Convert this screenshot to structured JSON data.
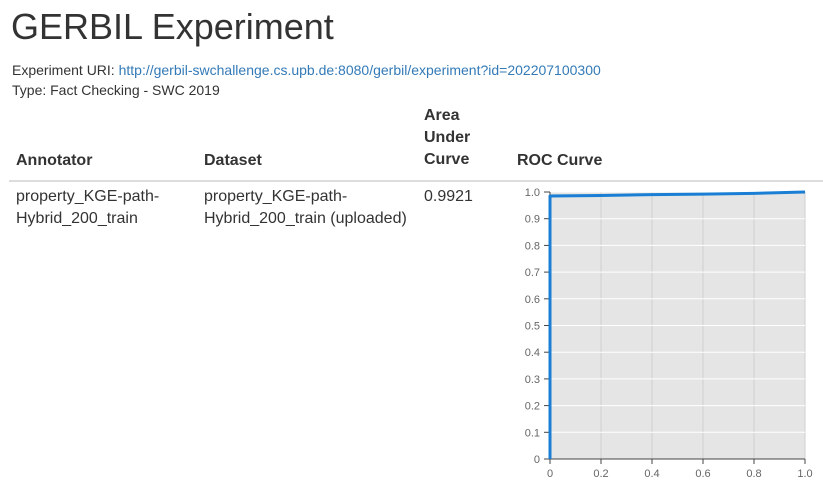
{
  "page": {
    "title": "GERBIL Experiment",
    "uri_label": "Experiment URI:",
    "uri_link": "http://gerbil-swchallenge.cs.upb.de:8080/gerbil/experiment?id=202207100300",
    "type_line": "Type: Fact Checking - SWC 2019"
  },
  "table": {
    "headers": {
      "annotator": "Annotator",
      "dataset": "Dataset",
      "auc": "Area Under Curve",
      "roc": "ROC Curve"
    },
    "rows": [
      {
        "annotator": "property_KGE-path-Hybrid_200_train",
        "dataset": "property_KGE-path-Hybrid_200_train (uploaded)",
        "auc": "0.9921"
      }
    ]
  },
  "colors": {
    "line": "#1a7fd4",
    "plot_background": "#e5e5e5",
    "link": "#337ab7"
  },
  "chart_data": {
    "type": "line",
    "title": "",
    "xlabel": "",
    "ylabel": "",
    "xlim": [
      0,
      1
    ],
    "ylim": [
      0,
      1
    ],
    "x_ticks": [
      0,
      0.2,
      0.4,
      0.6,
      0.8,
      1.0
    ],
    "y_ticks": [
      0,
      0.1,
      0.2,
      0.3,
      0.4,
      0.5,
      0.6,
      0.7,
      0.8,
      0.9,
      1.0
    ],
    "x_tick_labels": [
      "0",
      "0.2",
      "0.4",
      "0.6",
      "0.8",
      "1.0"
    ],
    "y_tick_labels": [
      "0",
      "0.1",
      "0.2",
      "0.3",
      "0.4",
      "0.5",
      "0.6",
      "0.7",
      "0.8",
      "0.9",
      "1.0"
    ],
    "grid": true,
    "series": [
      {
        "x": [
          0,
          0,
          0.2,
          0.4,
          0.6,
          0.8,
          1.0
        ],
        "y": [
          0,
          0.985,
          0.987,
          0.99,
          0.992,
          0.995,
          1.0
        ]
      }
    ]
  }
}
